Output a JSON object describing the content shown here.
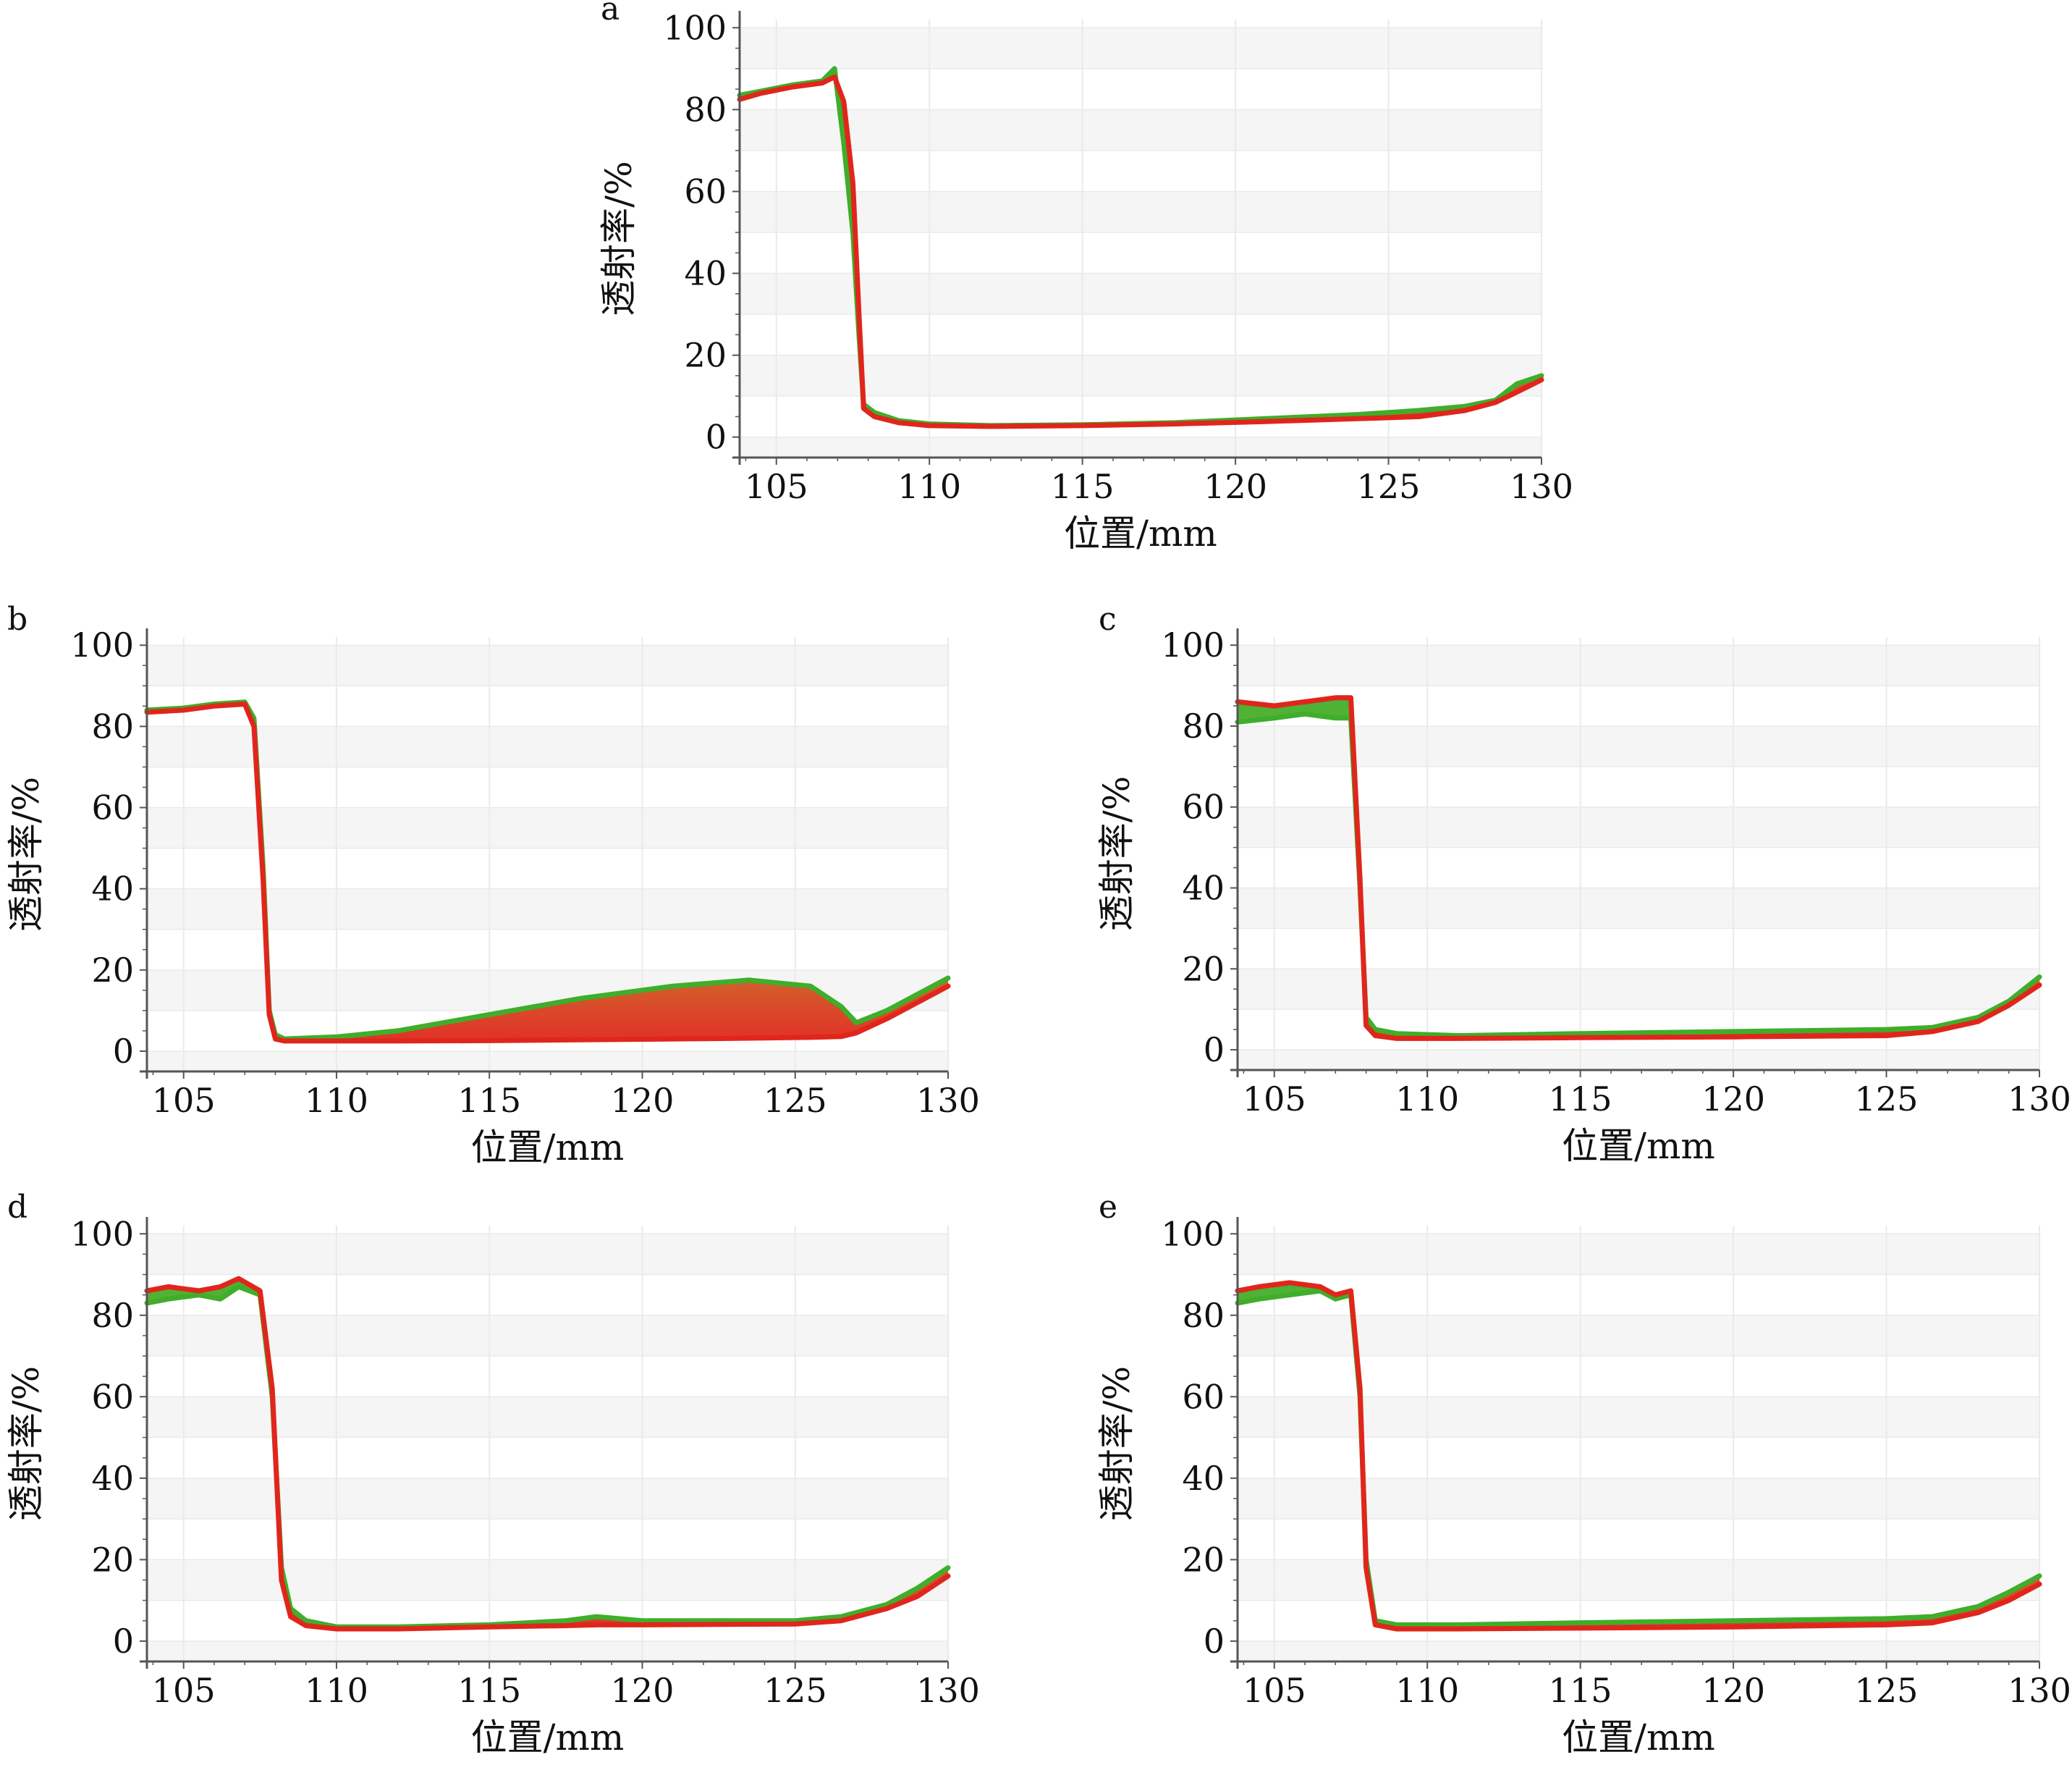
{
  "figure": {
    "background": "#ffffff",
    "band_color": "#f4f5f4",
    "grid_color": "#e9ebe9",
    "axis_color": "#555555",
    "green": "#3fae2a",
    "red": "#e0261c"
  },
  "chart_data": [
    {
      "panel_label": "a",
      "type": "line",
      "title": "",
      "xlabel": "位置/mm",
      "ylabel": "透射率/%",
      "xlim": [
        103.8,
        130
      ],
      "ylim": [
        -5,
        102
      ],
      "xticks": [
        105,
        110,
        115,
        120,
        125,
        130
      ],
      "yticks": [
        0,
        20,
        40,
        60,
        80,
        100
      ],
      "x_tick_labels": [
        "105",
        "110",
        "115",
        "120",
        "125",
        "130"
      ],
      "y_tick_labels": [
        "0",
        "20",
        "40",
        "60",
        "80",
        "100"
      ],
      "grid": true,
      "legend": "none",
      "series_note_colors": [
        "green",
        "red"
      ],
      "series": [
        {
          "color": "green",
          "x": [
            103.8,
            104.5,
            105.5,
            106.5,
            106.9,
            107.2,
            107.5,
            107.7,
            107.85,
            108.2,
            109,
            110,
            112,
            115,
            118,
            121,
            124,
            126,
            127.5,
            128.5,
            129.2,
            130
          ],
          "values": [
            83.5,
            84.5,
            86,
            87,
            90,
            72,
            50,
            25,
            8,
            6,
            4,
            3.2,
            2.8,
            3,
            3.5,
            4.5,
            5.5,
            6.5,
            7.5,
            9,
            13,
            15
          ]
        },
        {
          "color": "red",
          "x": [
            103.8,
            104.5,
            105.5,
            106.5,
            106.9,
            107.2,
            107.5,
            107.7,
            107.85,
            108.2,
            109,
            110,
            112,
            115,
            118,
            121,
            124,
            126,
            127.5,
            128.5,
            129.2,
            130
          ],
          "values": [
            82.5,
            84,
            85.5,
            86.5,
            88,
            82,
            62,
            30,
            7,
            5,
            3.5,
            2.8,
            2.6,
            2.8,
            3.2,
            3.8,
            4.5,
            5,
            6.5,
            8.5,
            11,
            14
          ]
        }
      ]
    },
    {
      "panel_label": "b",
      "type": "line",
      "title": "",
      "xlabel": "位置/mm",
      "ylabel": "透射率/%",
      "xlim": [
        103.8,
        130
      ],
      "ylim": [
        -5,
        102
      ],
      "xticks": [
        105,
        110,
        115,
        120,
        125,
        130
      ],
      "yticks": [
        0,
        20,
        40,
        60,
        80,
        100
      ],
      "x_tick_labels": [
        "105",
        "110",
        "115",
        "120",
        "125",
        "130"
      ],
      "y_tick_labels": [
        "0",
        "20",
        "40",
        "60",
        "80",
        "100"
      ],
      "grid": true,
      "legend": "none",
      "series": [
        {
          "color": "green",
          "x": [
            103.8,
            105,
            106,
            107,
            107.3,
            107.6,
            107.8,
            108,
            108.3,
            110,
            112,
            115,
            118,
            121,
            123.5,
            125.5,
            126.5,
            127,
            128,
            129,
            130
          ],
          "values": [
            84,
            84.5,
            85.5,
            86,
            82,
            45,
            10,
            4,
            3,
            3.5,
            5,
            9,
            13,
            16,
            17.5,
            16,
            11,
            7,
            10,
            14,
            18
          ]
        },
        {
          "color": "red",
          "x": [
            103.8,
            105,
            106,
            107,
            107.3,
            107.6,
            107.8,
            108,
            108.3,
            110,
            112,
            115,
            118,
            121,
            123.5,
            125.5,
            126.5,
            127,
            128,
            129,
            130
          ],
          "values": [
            83.5,
            84,
            85,
            85.5,
            80,
            42,
            9,
            3,
            2.5,
            2.5,
            2.5,
            2.6,
            2.8,
            3,
            3.2,
            3.4,
            3.6,
            4.5,
            8,
            12,
            16
          ]
        }
      ]
    },
    {
      "panel_label": "c",
      "type": "line",
      "title": "",
      "xlabel": "位置/mm",
      "ylabel": "透射率/%",
      "xlim": [
        103.8,
        130
      ],
      "ylim": [
        -5,
        102
      ],
      "xticks": [
        105,
        110,
        115,
        120,
        125,
        130
      ],
      "yticks": [
        0,
        20,
        40,
        60,
        80,
        100
      ],
      "x_tick_labels": [
        "105",
        "110",
        "115",
        "120",
        "125",
        "130"
      ],
      "y_tick_labels": [
        "0",
        "20",
        "40",
        "60",
        "80",
        "100"
      ],
      "grid": true,
      "legend": "none",
      "series": [
        {
          "color": "green",
          "x": [
            103.8,
            105,
            106,
            107,
            107.5,
            107.8,
            108,
            108.3,
            109,
            111,
            115,
            120,
            125,
            126.5,
            128,
            129,
            130
          ],
          "values": [
            81,
            82,
            83,
            82,
            82,
            40,
            8,
            5,
            4,
            3.5,
            4,
            4.5,
            5,
            5.5,
            8,
            12,
            18
          ]
        },
        {
          "color": "red",
          "x": [
            103.8,
            105,
            106,
            107,
            107.5,
            107.8,
            108,
            108.3,
            109,
            111,
            115,
            120,
            125,
            126.5,
            128,
            129,
            130
          ],
          "values": [
            86,
            85,
            86,
            87,
            87,
            42,
            6,
            3.5,
            2.8,
            2.8,
            3,
            3.2,
            3.5,
            4.5,
            7,
            11,
            16
          ]
        }
      ]
    },
    {
      "panel_label": "d",
      "type": "line",
      "title": "",
      "xlabel": "位置/mm",
      "ylabel": "透射率/%",
      "xlim": [
        103.8,
        130
      ],
      "ylim": [
        -5,
        102
      ],
      "xticks": [
        105,
        110,
        115,
        120,
        125,
        130
      ],
      "yticks": [
        0,
        20,
        40,
        60,
        80,
        100
      ],
      "x_tick_labels": [
        "105",
        "110",
        "115",
        "120",
        "125",
        "130"
      ],
      "y_tick_labels": [
        "0",
        "20",
        "40",
        "60",
        "80",
        "100"
      ],
      "grid": true,
      "legend": "none",
      "series": [
        {
          "color": "green",
          "x": [
            103.8,
            104.5,
            105.5,
            106.2,
            106.8,
            107.5,
            107.9,
            108.2,
            108.5,
            109,
            110,
            112,
            115,
            117.5,
            118.5,
            120,
            125,
            126.5,
            128,
            129,
            130
          ],
          "values": [
            83,
            84,
            85,
            84,
            87,
            85,
            60,
            18,
            8,
            5,
            3.5,
            3.5,
            4,
            5,
            6,
            5,
            5,
            6,
            9,
            13,
            18
          ]
        },
        {
          "color": "red",
          "x": [
            103.8,
            104.5,
            105.5,
            106.2,
            106.8,
            107.5,
            107.9,
            108.2,
            108.5,
            109,
            110,
            112,
            115,
            117.5,
            118.5,
            120,
            125,
            126.5,
            128,
            129,
            130
          ],
          "values": [
            86,
            87,
            86,
            87,
            89,
            86,
            62,
            15,
            6,
            3.8,
            3,
            3,
            3.5,
            3.8,
            4,
            4,
            4.2,
            5,
            8,
            11,
            16
          ]
        }
      ]
    },
    {
      "panel_label": "e",
      "type": "line",
      "title": "",
      "xlabel": "位置/mm",
      "ylabel": "透射率/%",
      "xlim": [
        103.8,
        130
      ],
      "ylim": [
        -5,
        102
      ],
      "xticks": [
        105,
        110,
        115,
        120,
        125,
        130
      ],
      "yticks": [
        0,
        20,
        40,
        60,
        80,
        100
      ],
      "x_tick_labels": [
        "105",
        "110",
        "115",
        "120",
        "125",
        "130"
      ],
      "y_tick_labels": [
        "0",
        "20",
        "40",
        "60",
        "80",
        "100"
      ],
      "grid": true,
      "legend": "none",
      "series": [
        {
          "color": "green",
          "x": [
            103.8,
            104.5,
            105.5,
            106.5,
            107,
            107.5,
            107.8,
            108,
            108.3,
            109,
            111,
            115,
            120,
            125,
            126.5,
            128,
            129,
            130
          ],
          "values": [
            83,
            84,
            85,
            86,
            84,
            85,
            60,
            20,
            5,
            4,
            4,
            4.5,
            5,
            5.5,
            6,
            8.5,
            12,
            16
          ]
        },
        {
          "color": "red",
          "x": [
            103.8,
            104.5,
            105.5,
            106.5,
            107,
            107.5,
            107.8,
            108,
            108.3,
            109,
            111,
            115,
            120,
            125,
            126.5,
            128,
            129,
            130
          ],
          "values": [
            86,
            87,
            88,
            87,
            85,
            86,
            62,
            18,
            4,
            3,
            3,
            3.2,
            3.5,
            4,
            4.5,
            7,
            10,
            14
          ]
        }
      ]
    }
  ]
}
